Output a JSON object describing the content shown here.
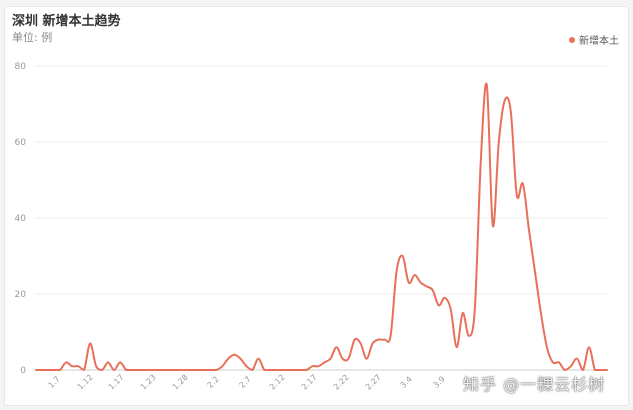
{
  "header": {
    "title": "深圳 新增本土趋势",
    "subtitle": "单位: 例"
  },
  "legend": {
    "label": "新增本土"
  },
  "watermark": "知乎 @一粿云杉树",
  "colors": {
    "line": "#e8705a",
    "grid": "#ececec",
    "axis": "#cfcfcf",
    "tick": "#999999"
  },
  "chart_data": {
    "type": "line",
    "title": "深圳 新增本土趋势",
    "ylabel": "单位: 例",
    "ylim": [
      0,
      80
    ],
    "yticks": [
      0,
      20,
      40,
      60,
      80
    ],
    "legend_position": "top-right",
    "grid": true,
    "xtick_labels": [
      "1.7",
      "1.12",
      "1.17",
      "1.23",
      "1.28",
      "2.2",
      "2.7",
      "2.12",
      "2.17",
      "2.22",
      "2.27",
      "3.4",
      "3.9"
    ],
    "series": [
      {
        "name": "新增本土",
        "values": [
          0,
          0,
          0,
          0,
          0,
          2,
          1,
          1,
          0,
          7,
          1,
          0,
          2,
          0,
          2,
          0,
          0,
          0,
          0,
          0,
          0,
          0,
          0,
          0,
          0,
          0,
          0,
          0,
          0,
          0,
          0,
          1,
          3,
          4,
          3,
          1,
          0,
          3,
          0,
          0,
          0,
          0,
          0,
          0,
          0,
          0,
          1,
          1,
          2,
          3,
          6,
          3,
          3,
          8,
          7,
          3,
          7,
          8,
          8,
          9,
          26,
          30,
          23,
          25,
          23,
          22,
          21,
          17,
          19,
          16,
          6,
          15,
          9,
          16,
          55,
          75,
          38,
          60,
          71,
          68,
          46,
          49,
          37,
          26,
          15,
          6,
          2,
          2,
          0,
          1,
          3,
          0,
          6,
          0,
          0,
          0
        ]
      }
    ]
  }
}
